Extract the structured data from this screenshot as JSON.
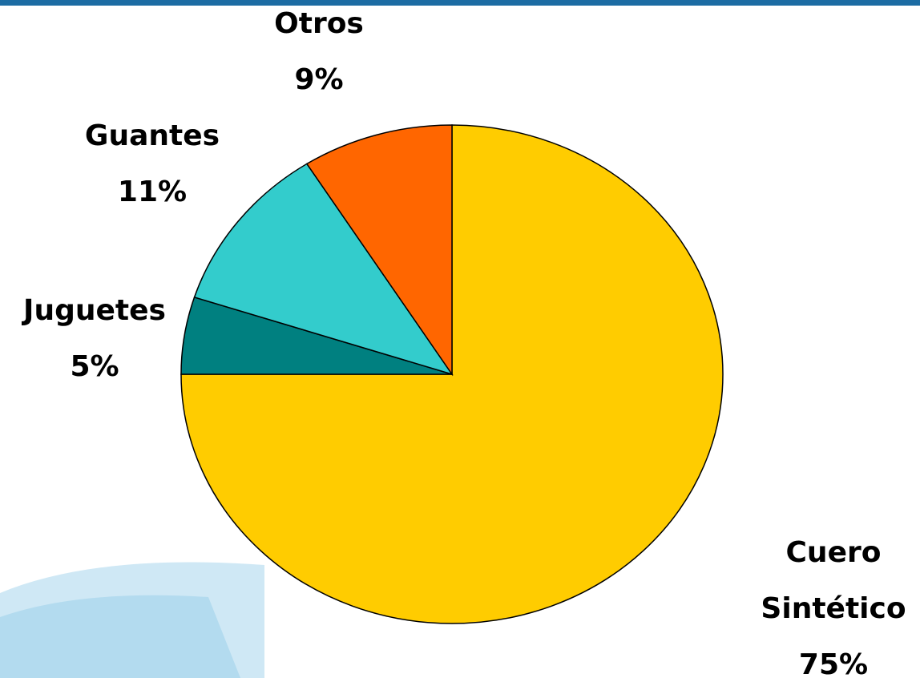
{
  "chart_data": {
    "type": "pie",
    "categories": [
      "Cuero Sintético",
      "Juguetes",
      "Guantes",
      "Otros"
    ],
    "values": [
      75,
      5,
      11,
      9
    ],
    "value_labels": [
      "75%",
      "5%",
      "11%",
      "9%"
    ],
    "colors": [
      "#ffcc00",
      "#008080",
      "#33cccc",
      "#ff6600"
    ]
  }
}
